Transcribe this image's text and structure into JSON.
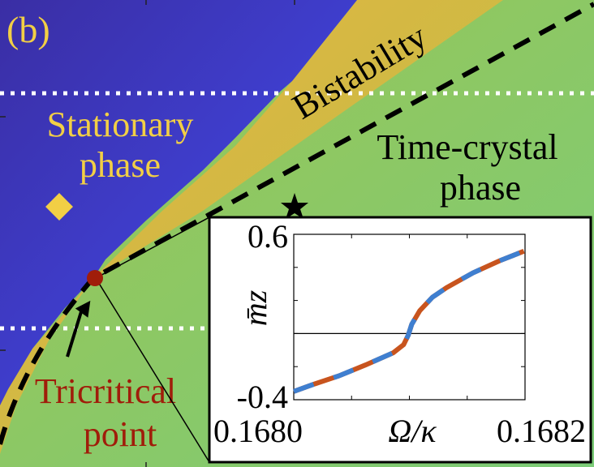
{
  "panel_label": "(b)",
  "regions": {
    "stationary": [
      "Stationary",
      "phase"
    ],
    "time_crystal": [
      "Time-crystal",
      "phase"
    ],
    "bistability": "Bistability",
    "tricritical": [
      "Tricritical",
      "point"
    ]
  },
  "colors": {
    "stationary_blue": "#3a30a8",
    "boundary_orange": "#e8ae3c",
    "time_crystal_green": "#86c870",
    "label_yellow": "#f2cf45",
    "tricritical_red": "#a01d0a",
    "series_orange": "#c8541e",
    "series_blue": "#3f7fd0"
  },
  "markers": [
    "diamond",
    "star",
    "circle"
  ],
  "chart_data": {
    "type": "line",
    "xlabel": "Ω/κ",
    "ylabel": "m̄z",
    "xlim": [
      0.168,
      0.1682
    ],
    "ylim": [
      -0.4,
      0.6
    ],
    "xtick_labels": [
      "0.1680",
      "0.1682"
    ],
    "ytick_labels": [
      "0.6",
      "-0.4"
    ],
    "reference_line_y": 0,
    "style": "alternating orange/blue dashed thick line over thin black line",
    "x": [
      0.168,
      0.168018,
      0.168039,
      0.168062,
      0.168086,
      0.168095,
      0.168099,
      0.168102,
      0.168109,
      0.16812,
      0.168132,
      0.168155,
      0.168178,
      0.168199
    ],
    "y": [
      -0.35,
      -0.305,
      -0.256,
      -0.19,
      -0.116,
      -0.067,
      -0.01,
      0.056,
      0.138,
      0.22,
      0.277,
      0.367,
      0.44,
      0.498
    ]
  }
}
